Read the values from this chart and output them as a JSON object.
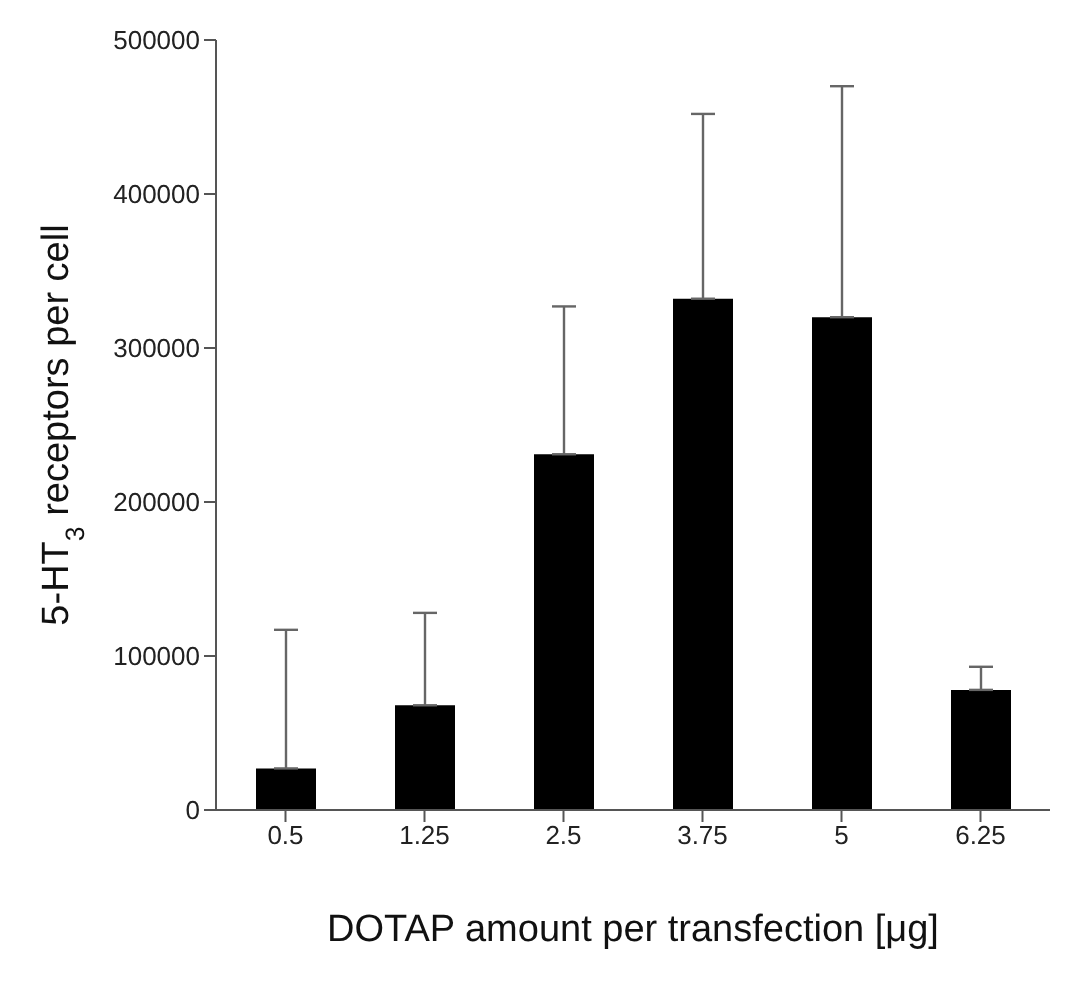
{
  "chart_data": {
    "type": "bar",
    "xlabel": "DOTAP amount per transfection [μg]",
    "ylabel": "5-HT$_{3}$ receptors per cell",
    "categories": [
      "0.5",
      "1.25",
      "2.5",
      "3.75",
      "5",
      "6.25"
    ],
    "values": [
      27000,
      68000,
      231000,
      332000,
      320000,
      78000
    ],
    "errors": [
      [
        27000,
        117000
      ],
      [
        68000,
        128000
      ],
      [
        231000,
        327000
      ],
      [
        332000,
        452000
      ],
      [
        320000,
        470000
      ],
      [
        78000,
        93000
      ]
    ],
    "color": "#000000",
    "ylim": [
      0,
      500000
    ],
    "yticks": [
      0,
      100000,
      200000,
      300000,
      400000,
      500000
    ],
    "grid": false
  }
}
